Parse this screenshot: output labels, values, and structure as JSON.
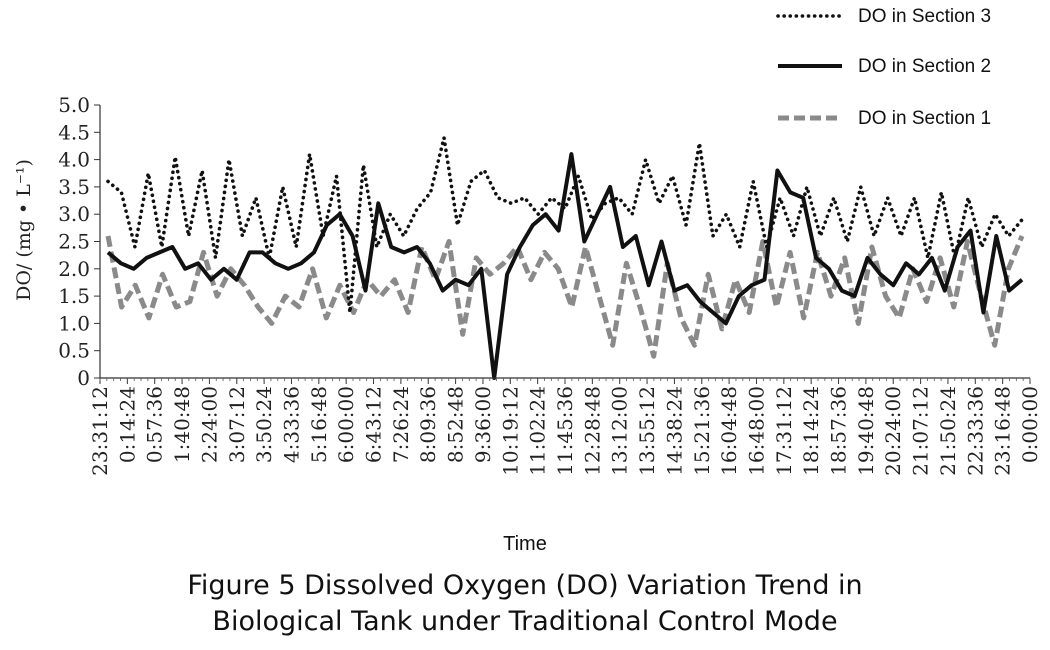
{
  "chart_data": {
    "type": "line",
    "title": "",
    "xlabel": "Time",
    "ylabel": "DO/ (mg • L⁻¹)",
    "ylim": [
      0,
      5.0
    ],
    "y_ticks": [
      "0",
      "0.5",
      "1.0",
      "1.5",
      "2.0",
      "2.5",
      "3.0",
      "3.5",
      "4.0",
      "4.5",
      "5.0"
    ],
    "x_ticks": [
      "23:31:12",
      "0:14:24",
      "0:57:36",
      "1:40:48",
      "2:24:00",
      "3:07:12",
      "3:50:24",
      "4:33:36",
      "5:16:48",
      "6:00:00",
      "6:43:12",
      "7:26:24",
      "8:09:36",
      "8:52:48",
      "9:36:00",
      "10:19:12",
      "11:02:24",
      "11:45:36",
      "12:28:48",
      "13:12:00",
      "13:55:12",
      "14:38:24",
      "15:21:36",
      "16:04:48",
      "16:48:00",
      "17:31:12",
      "18:14:24",
      "18:57:36",
      "19:40:48",
      "20:24:00",
      "21:07:12",
      "21:50:24",
      "22:33:36",
      "23:16:48",
      "0:00:00"
    ],
    "grid": false,
    "legend_position": "top-right",
    "series": [
      {
        "name": "DO in Section 3",
        "style": "dotted",
        "color": "#111111",
        "values": [
          3.6,
          3.4,
          2.4,
          3.75,
          2.4,
          4.05,
          2.6,
          3.8,
          2.2,
          4.0,
          2.6,
          3.3,
          2.2,
          3.5,
          2.4,
          4.1,
          2.6,
          3.7,
          1.2,
          3.9,
          2.4,
          3.0,
          2.6,
          3.1,
          3.4,
          4.4,
          2.8,
          3.6,
          3.8,
          3.3,
          3.2,
          3.3,
          3.0,
          3.3,
          3.1,
          3.7,
          2.9,
          3.2,
          3.3,
          3.0,
          4.0,
          3.2,
          3.7,
          2.8,
          4.3,
          2.6,
          3.0,
          2.4,
          3.6,
          2.4,
          3.3,
          2.6,
          3.5,
          2.6,
          3.3,
          2.5,
          3.5,
          2.6,
          3.3,
          2.6,
          3.3,
          2.2,
          3.4,
          2.2,
          3.3,
          2.4,
          3.0,
          2.6,
          2.9
        ]
      },
      {
        "name": "DO in Section 2",
        "style": "solid",
        "color": "#111111",
        "values": [
          2.3,
          2.1,
          2.0,
          2.2,
          2.3,
          2.4,
          2.0,
          2.1,
          1.8,
          2.0,
          1.8,
          2.3,
          2.3,
          2.1,
          2.0,
          2.1,
          2.3,
          2.8,
          3.0,
          2.6,
          1.6,
          3.2,
          2.4,
          2.3,
          2.4,
          2.1,
          1.6,
          1.8,
          1.7,
          2.0,
          0.0,
          1.9,
          2.4,
          2.8,
          3.0,
          2.7,
          4.1,
          2.5,
          3.0,
          3.5,
          2.4,
          2.6,
          1.7,
          2.5,
          1.6,
          1.7,
          1.4,
          1.2,
          1.0,
          1.5,
          1.7,
          1.8,
          3.8,
          3.4,
          3.3,
          2.2,
          2.0,
          1.6,
          1.5,
          2.2,
          1.9,
          1.7,
          2.1,
          1.9,
          2.2,
          1.6,
          2.4,
          2.7,
          1.2,
          2.6,
          1.6,
          1.8
        ]
      },
      {
        "name": "DO in Section 1",
        "style": "dashed",
        "color": "#8a8a8a",
        "values": [
          2.6,
          1.3,
          1.7,
          1.1,
          1.9,
          1.3,
          1.4,
          2.3,
          1.5,
          2.0,
          1.7,
          1.3,
          1.0,
          1.5,
          1.3,
          2.0,
          1.1,
          1.7,
          1.2,
          1.8,
          1.5,
          1.8,
          1.2,
          2.4,
          1.8,
          2.5,
          0.8,
          2.2,
          1.9,
          2.1,
          2.4,
          1.8,
          2.3,
          2.0,
          1.3,
          2.4,
          1.5,
          0.6,
          2.1,
          1.3,
          0.4,
          2.1,
          1.1,
          0.6,
          1.9,
          0.9,
          1.8,
          1.2,
          2.5,
          1.3,
          2.3,
          1.1,
          2.3,
          1.5,
          2.2,
          1.0,
          2.4,
          1.5,
          1.1,
          2.0,
          1.4,
          2.2,
          1.3,
          2.5,
          1.5,
          0.6,
          2.0,
          2.6
        ]
      }
    ]
  },
  "caption": {
    "line1": "Figure 5 Dissolved Oxygen (DO) Variation Trend in",
    "line2": "Biological Tank under Traditional Control Mode"
  }
}
